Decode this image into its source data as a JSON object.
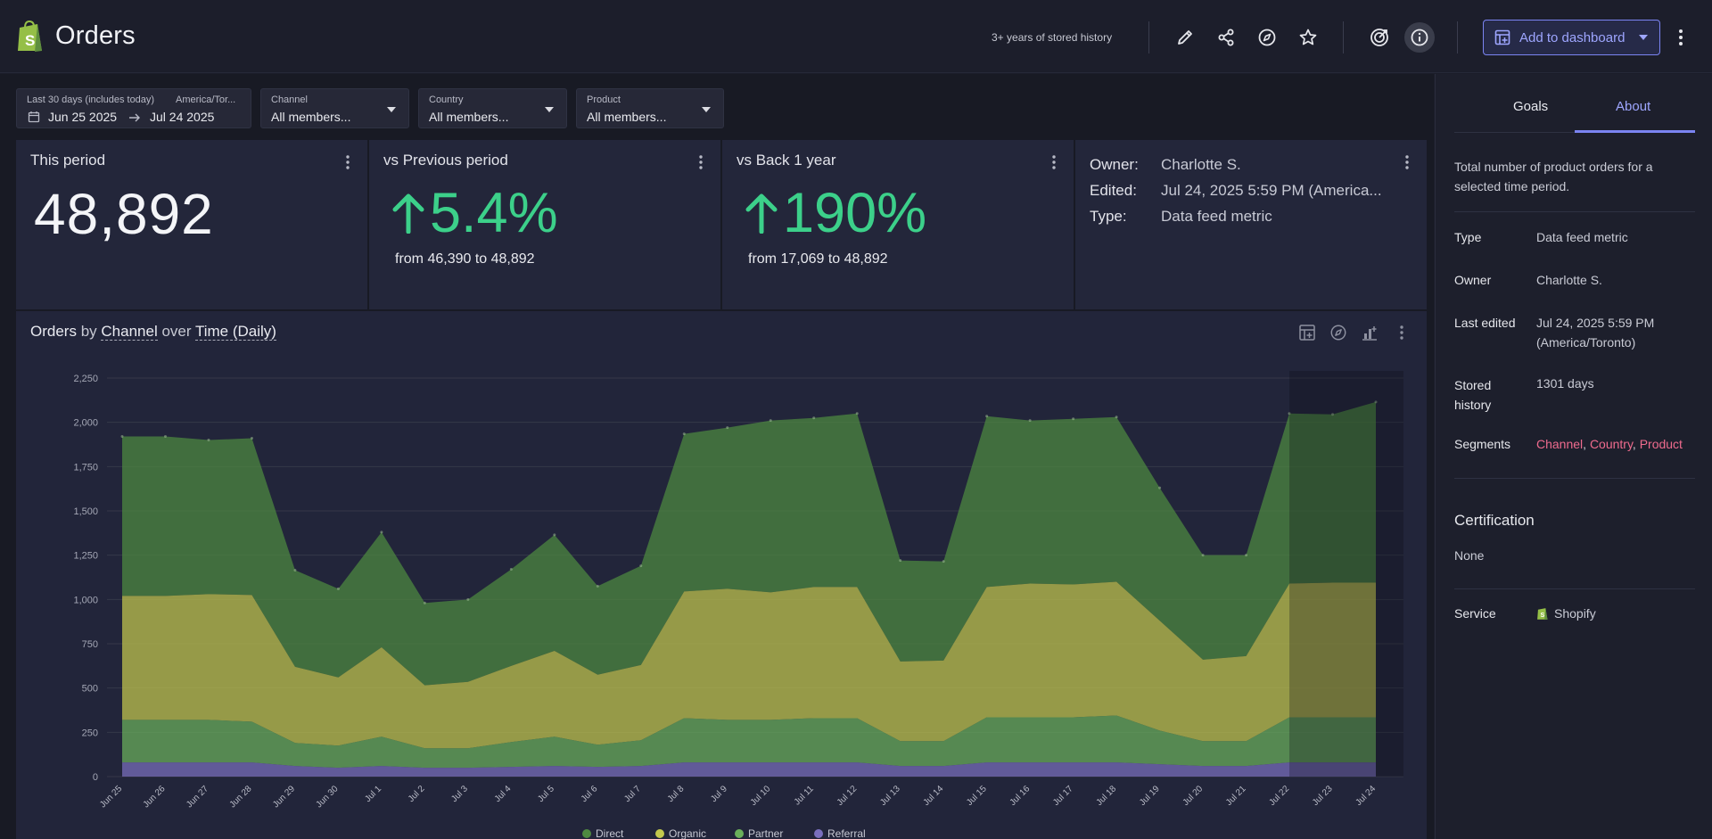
{
  "header": {
    "title": "Orders",
    "history_note": "3+ years of stored history",
    "add_to_dashboard": "Add to dashboard"
  },
  "filters": {
    "date": {
      "label": "Last 30 days (includes today)",
      "timezone": "America/Tor...",
      "from": "Jun 25 2025",
      "to": "Jul 24 2025"
    },
    "channel": {
      "label": "Channel",
      "value": "All members..."
    },
    "country": {
      "label": "Country",
      "value": "All members..."
    },
    "product": {
      "label": "Product",
      "value": "All members..."
    }
  },
  "cards": {
    "this_period": {
      "title": "This period",
      "value": "48,892"
    },
    "previous": {
      "title": "vs Previous period",
      "pct": "5.4%",
      "detail": "from 46,390 to 48,892"
    },
    "back_year": {
      "title": "vs Back 1 year",
      "pct": "190%",
      "detail": "from 17,069 to 48,892"
    },
    "meta": {
      "owner_label": "Owner:",
      "owner": "Charlotte S.",
      "edited_label": "Edited:",
      "edited": "Jul 24, 2025 5:59 PM (America...",
      "type_label": "Type:",
      "type": "Data feed metric"
    }
  },
  "chart_title": {
    "metric": "Orders",
    "by": "by",
    "dimension": "Channel",
    "over": "over",
    "time": "Time (Daily)"
  },
  "colors": {
    "direct": "#4e8a40",
    "organic": "#c3c84d",
    "partner": "#6bb05b",
    "referral": "#7a6fbe",
    "positive": "#3cd08a",
    "accent": "#7b84f2",
    "segment": "#ef6b8e"
  },
  "chart_data": {
    "type": "area",
    "stacked": true,
    "title": "Orders by Channel over Time (Daily)",
    "xlabel": "",
    "ylabel": "",
    "ylim": [
      0,
      2250
    ],
    "yticks": [
      0,
      250,
      500,
      750,
      1000,
      1250,
      1500,
      1750,
      2000,
      2250
    ],
    "ytick_labels": [
      "0",
      "250",
      "500",
      "750",
      "1,000",
      "1,250",
      "1,500",
      "1,750",
      "2,000",
      "2,250"
    ],
    "x": [
      "Jun 25",
      "Jun 26",
      "Jun 27",
      "Jun 28",
      "Jun 29",
      "Jun 30",
      "Jul 1",
      "Jul 2",
      "Jul 3",
      "Jul 4",
      "Jul 5",
      "Jul 6",
      "Jul 7",
      "Jul 8",
      "Jul 9",
      "Jul 10",
      "Jul 11",
      "Jul 12",
      "Jul 13",
      "Jul 14",
      "Jul 15",
      "Jul 16",
      "Jul 17",
      "Jul 18",
      "Jul 19",
      "Jul 20",
      "Jul 21",
      "Jul 22",
      "Jul 23",
      "Jul 24"
    ],
    "series": [
      {
        "name": "Referral",
        "color": "#7a6fbe",
        "values": [
          80,
          80,
          80,
          80,
          60,
          50,
          60,
          50,
          50,
          55,
          60,
          55,
          60,
          80,
          80,
          80,
          80,
          80,
          60,
          60,
          80,
          80,
          80,
          80,
          70,
          60,
          60,
          80,
          80,
          80
        ]
      },
      {
        "name": "Partner",
        "color": "#6bb05b",
        "values": [
          240,
          240,
          240,
          230,
          130,
          125,
          165,
          110,
          110,
          140,
          165,
          125,
          145,
          250,
          240,
          240,
          250,
          250,
          140,
          140,
          255,
          255,
          255,
          265,
          190,
          140,
          140,
          255,
          255,
          255
        ]
      },
      {
        "name": "Organic",
        "color": "#c3c84d",
        "values": [
          700,
          700,
          710,
          715,
          430,
          385,
          505,
          355,
          375,
          430,
          485,
          395,
          425,
          715,
          740,
          720,
          740,
          740,
          450,
          455,
          735,
          755,
          750,
          755,
          620,
          460,
          480,
          755,
          760,
          760
        ]
      },
      {
        "name": "Direct",
        "color": "#4e8a40",
        "values": [
          900,
          900,
          870,
          885,
          545,
          500,
          650,
          465,
          465,
          545,
          655,
          500,
          560,
          890,
          910,
          970,
          955,
          980,
          570,
          560,
          965,
          920,
          935,
          930,
          750,
          590,
          570,
          960,
          950,
          1020
        ]
      }
    ],
    "totals": [
      1920,
      1920,
      1900,
      1910,
      1165,
      1060,
      1380,
      980,
      1000,
      1170,
      1365,
      1075,
      1190,
      1935,
      1970,
      2010,
      2025,
      2050,
      1220,
      1215,
      2035,
      2010,
      2020,
      2030,
      1630,
      1250,
      1250,
      2050,
      2045,
      2115
    ],
    "incomplete_from": "Jul 22",
    "legend": [
      "Direct",
      "Organic",
      "Partner",
      "Referral"
    ],
    "legend_position": "bottom"
  },
  "sidebar": {
    "tabs": {
      "goals": "Goals",
      "about": "About"
    },
    "description": "Total number of product orders for a selected time period.",
    "type_label": "Type",
    "type": "Data feed metric",
    "owner_label": "Owner",
    "owner": "Charlotte S.",
    "edited_label": "Last edited",
    "edited": "Jul 24, 2025 5:59 PM (America/Toronto)",
    "stored_label": "Stored history",
    "stored": "1301 days",
    "segments_label": "Segments",
    "segments": [
      "Channel",
      "Country",
      "Product"
    ],
    "certification_label": "Certification",
    "certification": "None",
    "service_label": "Service",
    "service": "Shopify"
  }
}
